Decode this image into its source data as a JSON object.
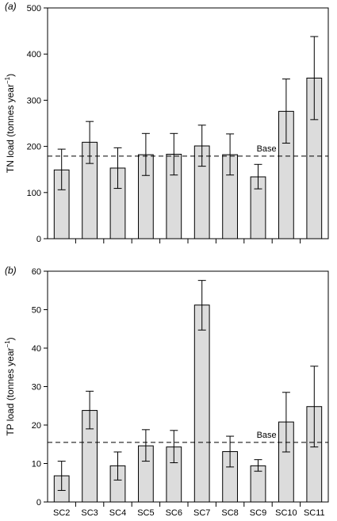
{
  "chart_data": [
    {
      "type": "bar",
      "panel_label": "(a)",
      "ylabel": "TN load (tonnes year",
      "ylabel_sup": "−1",
      "ylabel_close": ")",
      "categories": [
        "SC2",
        "SC3",
        "SC4",
        "SC5",
        "SC6",
        "SC7",
        "SC8",
        "SC9",
        "SC10",
        "SC11"
      ],
      "values": [
        149,
        209,
        153,
        182,
        183,
        201,
        182,
        134,
        276,
        348
      ],
      "err_low": [
        106,
        163,
        109,
        137,
        138,
        157,
        138,
        108,
        207,
        258
      ],
      "err_high": [
        194,
        254,
        197,
        228,
        228,
        246,
        227,
        161,
        346,
        438
      ],
      "ylim": [
        0,
        500
      ],
      "yticks": [
        0,
        100,
        200,
        300,
        400,
        500
      ],
      "baseline": {
        "value": 179,
        "label": "Base"
      },
      "show_xtick_labels": false
    },
    {
      "type": "bar",
      "panel_label": "(b)",
      "ylabel": "TP load (tonnes year",
      "ylabel_sup": "−1",
      "ylabel_close": ")",
      "categories": [
        "SC2",
        "SC3",
        "SC4",
        "SC5",
        "SC6",
        "SC7",
        "SC8",
        "SC9",
        "SC10",
        "SC11"
      ],
      "values": [
        6.8,
        23.8,
        9.4,
        14.6,
        14.3,
        51.2,
        13.1,
        9.4,
        20.8,
        24.8
      ],
      "err_low": [
        3.0,
        19.0,
        5.7,
        10.6,
        10.2,
        44.7,
        9.1,
        8.0,
        13.0,
        14.3
      ],
      "err_high": [
        10.6,
        28.8,
        13.0,
        18.8,
        18.6,
        57.6,
        17.1,
        11.0,
        28.5,
        35.3
      ],
      "ylim": [
        0,
        60
      ],
      "yticks": [
        0,
        10,
        20,
        30,
        40,
        50,
        60
      ],
      "baseline": {
        "value": 15.5,
        "label": "Base"
      },
      "show_xtick_labels": true
    }
  ]
}
